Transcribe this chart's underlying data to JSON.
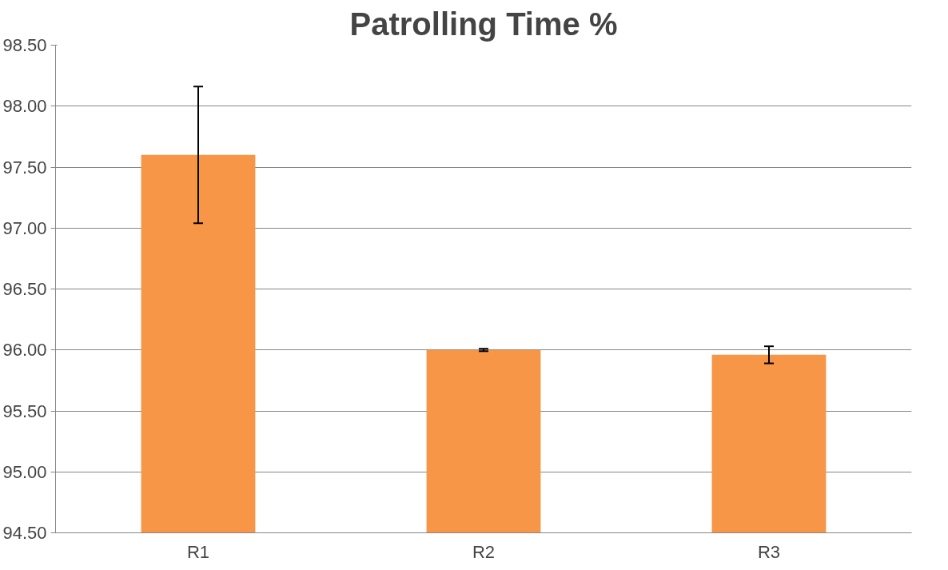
{
  "chart_data": {
    "type": "bar",
    "title": "Patrolling Time %",
    "categories": [
      "R1",
      "R2",
      "R3"
    ],
    "values": [
      97.6,
      96.0,
      95.96
    ],
    "errors": [
      0.56,
      0.01,
      0.07
    ],
    "color": "#f79646",
    "ylim": [
      94.5,
      98.5
    ],
    "yticks": [
      {
        "value": 94.5,
        "label": "94.50"
      },
      {
        "value": 95.0,
        "label": "95.00"
      },
      {
        "value": 95.5,
        "label": "95.50"
      },
      {
        "value": 96.0,
        "label": "96.00"
      },
      {
        "value": 96.5,
        "label": "96.50"
      },
      {
        "value": 97.0,
        "label": "97.00"
      },
      {
        "value": 97.5,
        "label": "97.50"
      },
      {
        "value": 98.0,
        "label": "98.00"
      },
      {
        "value": 98.5,
        "label": "98.50"
      }
    ],
    "grid": "y"
  }
}
